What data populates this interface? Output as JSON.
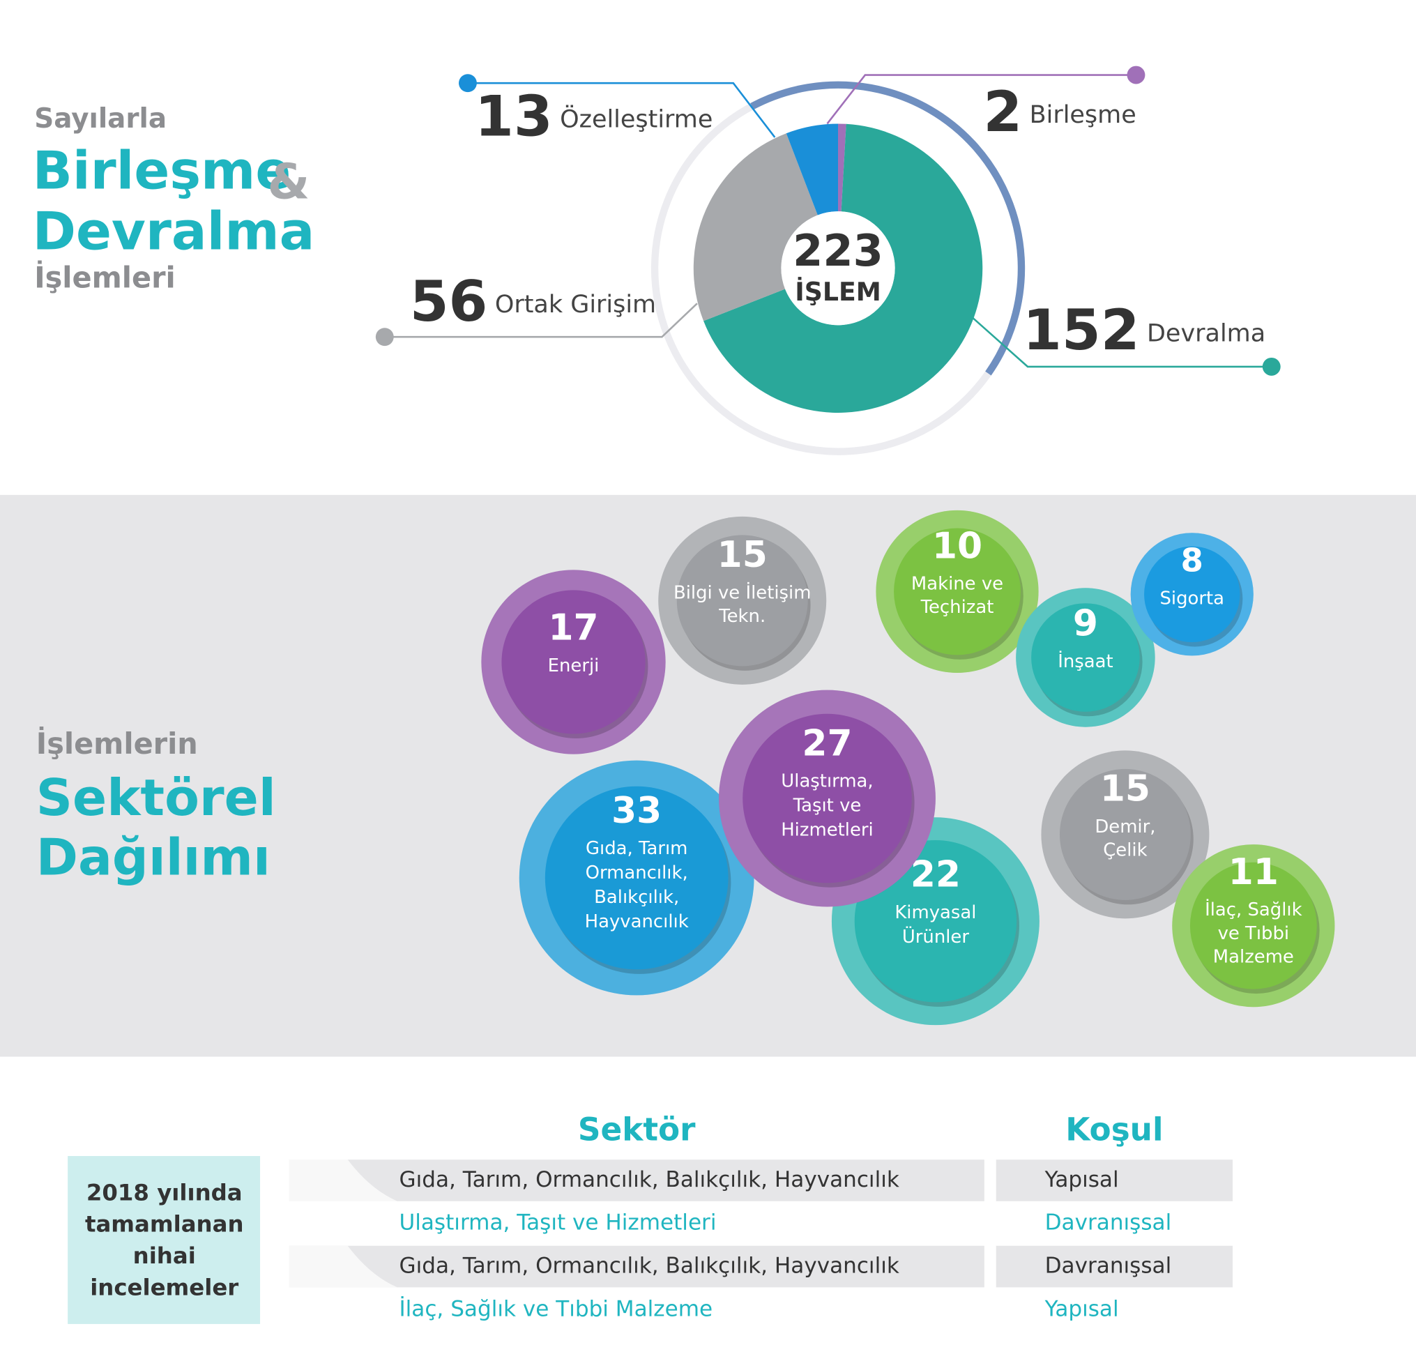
{
  "header": {
    "kicker": "Sayılarla",
    "title_line1": "Birleşme",
    "ampersand": "&",
    "title_line2": "Devralma",
    "subtitle": "İşlemleri"
  },
  "chart_data": [
    {
      "type": "donut",
      "center_value": 223,
      "center_label": "İŞLEM",
      "categories": [
        "Birleşme",
        "Devralma",
        "Ortak Girişim",
        "Özelleştirme"
      ],
      "values": [
        2,
        152,
        56,
        13
      ],
      "colors": [
        "#a070b8",
        "#2aa89a",
        "#a7a9ac",
        "#1a8fd8"
      ]
    },
    {
      "type": "bubble",
      "kicker": "İşlemlerin",
      "title_line1": "Sektörel",
      "title_line2": "Dağılımı",
      "categories": [
        [
          "Enerji"
        ],
        [
          "Bilgi ve İletişim",
          "Tekn."
        ],
        [
          "Makine ve",
          "Teçhizat"
        ],
        [
          "İnşaat"
        ],
        [
          "Sigorta"
        ],
        [
          "Gıda, Tarım",
          "Ormancılık,",
          "Balıkçılık,",
          "Hayvancılık"
        ],
        [
          "Kimyasal",
          "Ürünler"
        ],
        [
          "Ulaştırma,",
          "Taşıt ve",
          "Hizmetleri"
        ],
        [
          "Demir,",
          "Çelik"
        ],
        [
          "İlaç, Sağlık",
          "ve Tıbbi",
          "Malzeme"
        ]
      ],
      "values": [
        17,
        15,
        10,
        9,
        8,
        33,
        22,
        27,
        15,
        11
      ],
      "colors": [
        "#8e4fa6",
        "#9d9fa3",
        "#7cc242",
        "#2bb5b0",
        "#1b9be0",
        "#1a9ad6",
        "#2bb5b0",
        "#8e4fa6",
        "#9d9fa3",
        "#7cc242"
      ]
    }
  ],
  "table": {
    "caption": [
      "2018 yılında",
      "tamamlanan",
      "nihai",
      "incelemeler"
    ],
    "columns": [
      "Sektör",
      "Koşul"
    ],
    "rows": [
      [
        "Gıda, Tarım, Ormancılık, Balıkçılık, Hayvancılık",
        "Yapısal"
      ],
      [
        "Ulaştırma, Taşıt ve Hizmetleri",
        "Davranışsal"
      ],
      [
        "Gıda, Tarım, Ormancılık, Balıkçılık, Hayvancılık",
        "Davranışsal"
      ],
      [
        "İlaç, Sağlık ve Tıbbi Malzeme",
        "Yapısal"
      ]
    ]
  }
}
